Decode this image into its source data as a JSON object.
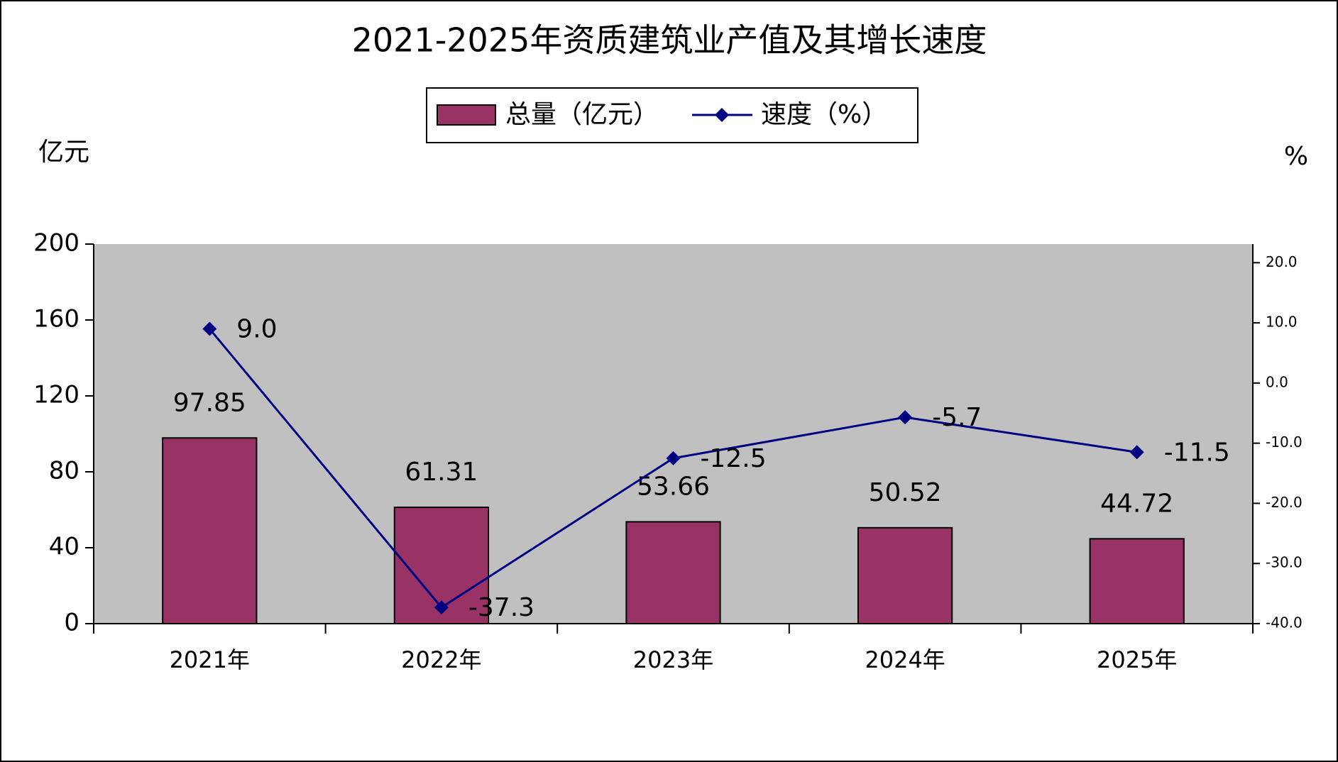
{
  "chart_data": {
    "type": "bar_line",
    "title": "2021-2025年资质建筑业产值及其增长速度",
    "y_label": "亿元",
    "y2_label": "%",
    "categories": [
      "2021年",
      "2022年",
      "2023年",
      "2024年",
      "2025年"
    ],
    "series": [
      {
        "name": "总量（亿元）",
        "type": "bar",
        "color": "#993366",
        "values": [
          97.85,
          61.31,
          53.66,
          50.52,
          44.72
        ]
      },
      {
        "name": "速度（%）",
        "type": "line",
        "axis": "y2",
        "color": "#000080",
        "values": [
          9.0,
          -37.3,
          -12.5,
          -5.7,
          -11.5
        ],
        "value_labels": [
          "9.0",
          "-37.3",
          "-12.5",
          "-5.7",
          "-11.5"
        ]
      }
    ],
    "ylim": [
      0,
      200
    ],
    "yticks": [
      0,
      40,
      80,
      120,
      160,
      200
    ],
    "y2lim": [
      -40,
      23.1
    ],
    "y2ticks": [
      {
        "value": -40,
        "label": "-40.0"
      },
      {
        "value": -30,
        "label": "-30.0"
      },
      {
        "value": -20,
        "label": "-20.0"
      },
      {
        "value": -10,
        "label": "-10.0"
      },
      {
        "value": 0,
        "label": "0.0"
      },
      {
        "value": 10,
        "label": "10.0"
      },
      {
        "value": 20,
        "label": "20.0"
      }
    ],
    "plot_background": "#c0c0c0"
  }
}
